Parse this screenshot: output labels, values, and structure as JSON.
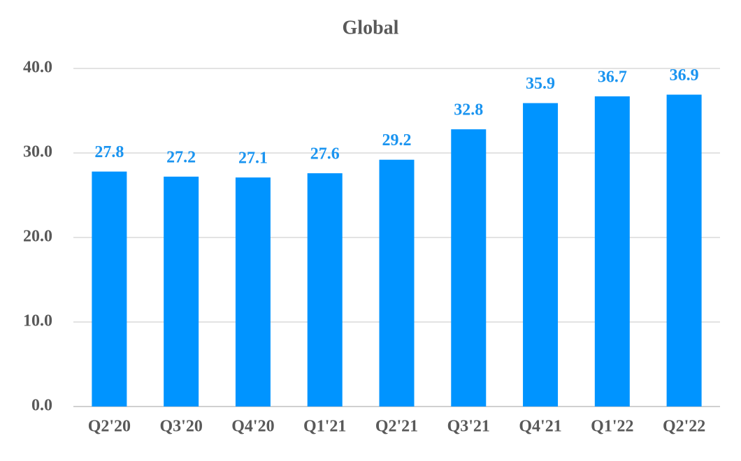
{
  "chart_data": {
    "type": "bar",
    "title": "Global",
    "categories": [
      "Q2'20",
      "Q3'20",
      "Q4'20",
      "Q1'21",
      "Q2'21",
      "Q3'21",
      "Q4'21",
      "Q1'22",
      "Q2'22"
    ],
    "values": [
      27.8,
      27.2,
      27.1,
      27.6,
      29.2,
      32.8,
      35.9,
      36.7,
      36.9
    ],
    "color": "#0094ff",
    "ylim": [
      0,
      40
    ],
    "yticks": [
      {
        "value": 0,
        "label": "0.0"
      },
      {
        "value": 10,
        "label": "10.0"
      },
      {
        "value": 20,
        "label": "20.0"
      },
      {
        "value": 30,
        "label": "30.0"
      },
      {
        "value": 40,
        "label": "40.0"
      }
    ],
    "grid": true
  }
}
